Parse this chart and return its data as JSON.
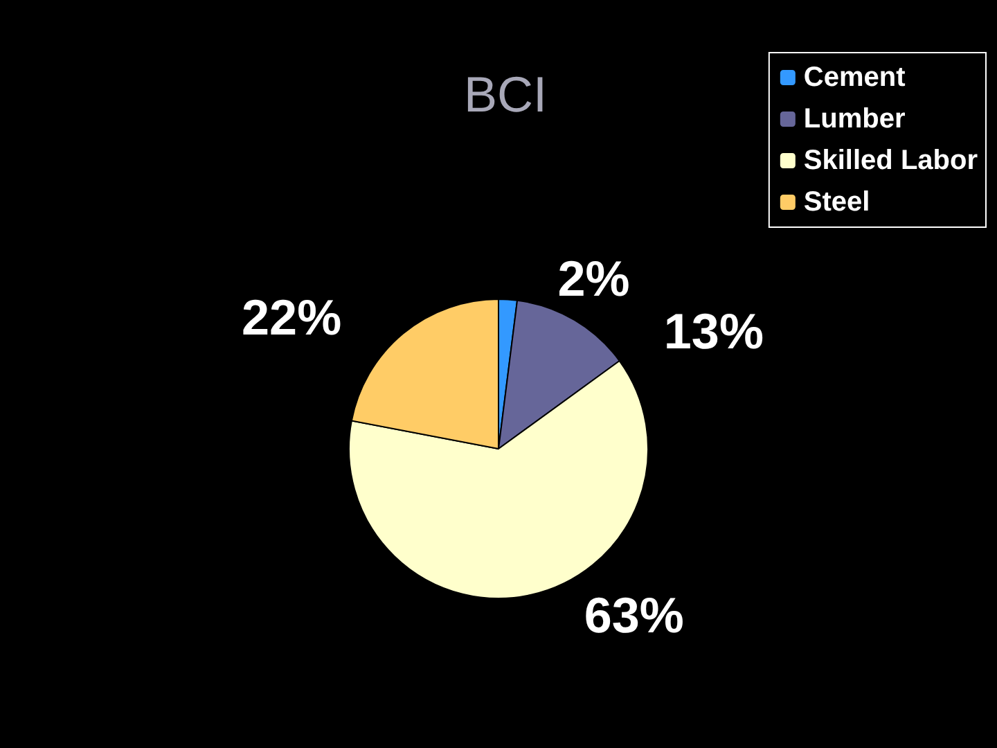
{
  "chart_data": {
    "type": "pie",
    "title": "BCI",
    "categories": [
      "Cement",
      "Lumber",
      "Skilled Labor",
      "Steel"
    ],
    "values": [
      2,
      13,
      63,
      22
    ],
    "colors": [
      "#3399ff",
      "#666699",
      "#ffffcc",
      "#ffcc66"
    ],
    "value_labels": [
      "2%",
      "13%",
      "63%",
      "22%"
    ],
    "legend": "top right"
  }
}
